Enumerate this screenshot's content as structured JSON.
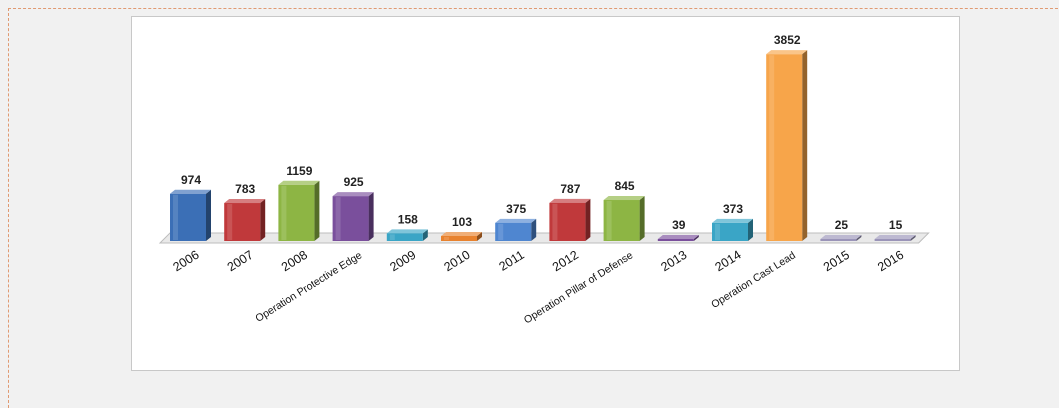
{
  "chart_data": {
    "type": "bar",
    "categories": [
      "2006",
      "2007",
      "2008",
      "Operation Protective Edge",
      "2009",
      "2010",
      "2011",
      "2012",
      "Operation Pillar of Defense",
      "2013",
      "2014",
      "Operation Cast Lead",
      "2015",
      "2016"
    ],
    "values": [
      974,
      783,
      1159,
      925,
      158,
      103,
      375,
      787,
      845,
      39,
      373,
      3852,
      25,
      15
    ],
    "value_labels": [
      "974",
      "783",
      "1159",
      "925",
      "158",
      "103",
      "375",
      "787",
      "845",
      "39",
      "373",
      "3852",
      "25",
      "15"
    ],
    "title": "",
    "xlabel": "",
    "ylabel": "",
    "ylim": [
      0,
      4000
    ],
    "grid": false,
    "style": "3d-columns",
    "colors": {
      "blue": "#3b6fb6",
      "red": "#c0393b",
      "green": "#8db544",
      "purple": "#7a4f9c",
      "teal": "#3aa5c6",
      "orange": "#e8822e",
      "cornflower": "#4f86d0",
      "lightorange": "#f7a54a",
      "lavender": "#9a94b8"
    },
    "bar_colors": [
      "blue",
      "red",
      "green",
      "purple",
      "teal",
      "orange",
      "cornflower",
      "red",
      "green",
      "purple",
      "teal",
      "lightorange",
      "lavender",
      "lavender"
    ]
  }
}
